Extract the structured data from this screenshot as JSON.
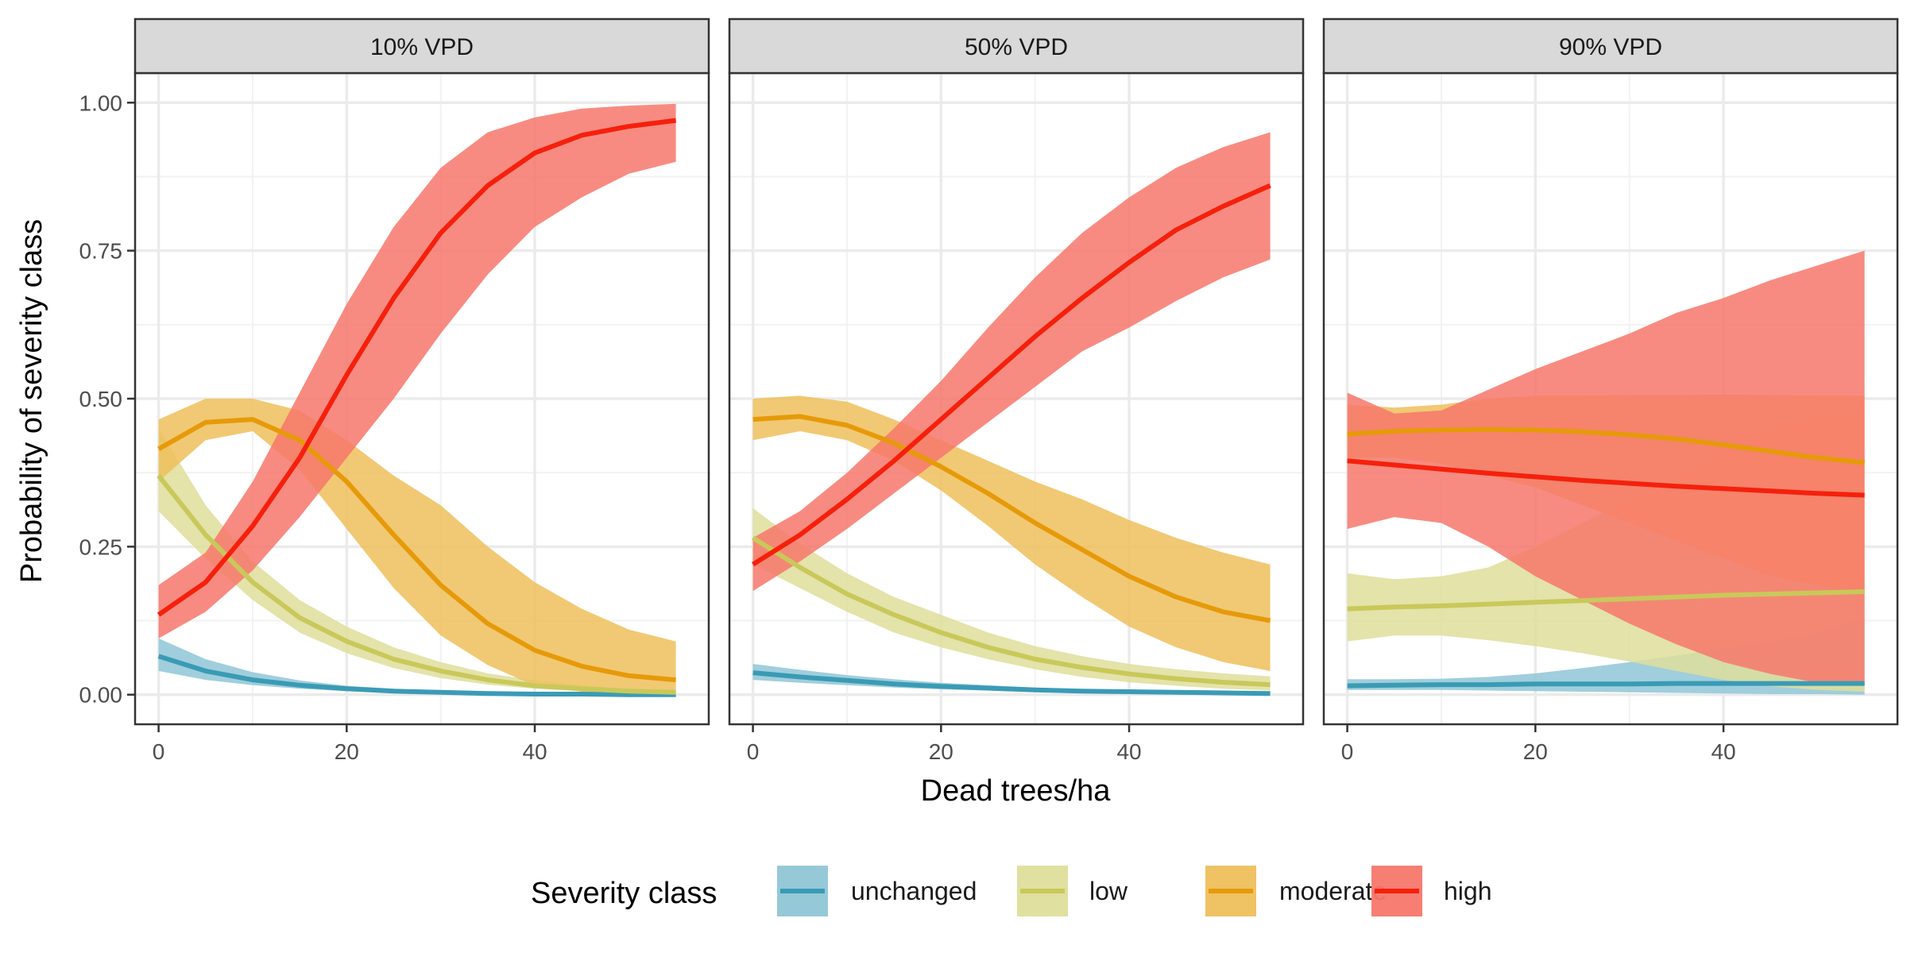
{
  "chart_data": {
    "type": "area",
    "xlabel": "Dead trees/ha",
    "ylabel": "Probability of severity class",
    "xlim": [
      -2.5,
      58.5
    ],
    "ylim": [
      -0.05,
      1.05
    ],
    "xticks": [
      0,
      20,
      40
    ],
    "yticks": [
      0,
      0.25,
      0.5,
      0.75,
      1.0
    ],
    "ytick_labels": [
      "0.00",
      "0.25",
      "0.50",
      "0.75",
      "1.00"
    ],
    "grid": true,
    "legend": {
      "title": "Severity class",
      "position": "bottom",
      "entries": [
        "unchanged",
        "low",
        "moderate",
        "high"
      ]
    },
    "colors": {
      "unchanged": {
        "line": "#3a9bb5",
        "fill": "#8fc6d6"
      },
      "low": {
        "line": "#c9c85a",
        "fill": "#dede9b"
      },
      "moderate": {
        "line": "#e69a0a",
        "fill": "#eebf5c"
      },
      "high": {
        "line": "#f5200c",
        "fill": "#f7776b"
      }
    },
    "x": [
      0,
      5,
      10,
      15,
      20,
      25,
      30,
      35,
      40,
      45,
      50,
      55
    ],
    "panels": [
      {
        "strip": "10% VPD",
        "series": [
          {
            "name": "unchanged",
            "mean": [
              0.065,
              0.04,
              0.025,
              0.016,
              0.01,
              0.006,
              0.004,
              0.002,
              0.001,
              0.001,
              0.0,
              0.0
            ],
            "lower": [
              0.04,
              0.025,
              0.016,
              0.01,
              0.006,
              0.003,
              0.002,
              0.001,
              0.0,
              0.0,
              0.0,
              0.0
            ],
            "upper": [
              0.095,
              0.06,
              0.038,
              0.024,
              0.015,
              0.01,
              0.006,
              0.004,
              0.002,
              0.001,
              0.001,
              0.0
            ]
          },
          {
            "name": "low",
            "mean": [
              0.37,
              0.27,
              0.19,
              0.13,
              0.09,
              0.06,
              0.04,
              0.025,
              0.015,
              0.01,
              0.006,
              0.004
            ],
            "lower": [
              0.31,
              0.23,
              0.16,
              0.105,
              0.07,
              0.045,
              0.028,
              0.017,
              0.01,
              0.006,
              0.003,
              0.002
            ],
            "upper": [
              0.45,
              0.32,
              0.225,
              0.16,
              0.115,
              0.08,
              0.055,
              0.036,
              0.024,
              0.016,
              0.01,
              0.007
            ]
          },
          {
            "name": "moderate",
            "mean": [
              0.415,
              0.46,
              0.465,
              0.43,
              0.36,
              0.27,
              0.185,
              0.12,
              0.075,
              0.048,
              0.032,
              0.025
            ],
            "lower": [
              0.36,
              0.43,
              0.445,
              0.38,
              0.28,
              0.18,
              0.1,
              0.05,
              0.015,
              0.005,
              0.002,
              0.0
            ],
            "upper": [
              0.465,
              0.5,
              0.5,
              0.48,
              0.43,
              0.37,
              0.32,
              0.25,
              0.19,
              0.145,
              0.11,
              0.09
            ]
          },
          {
            "name": "high",
            "mean": [
              0.135,
              0.19,
              0.285,
              0.4,
              0.54,
              0.67,
              0.78,
              0.86,
              0.915,
              0.945,
              0.96,
              0.97
            ],
            "lower": [
              0.095,
              0.14,
              0.21,
              0.3,
              0.4,
              0.5,
              0.61,
              0.71,
              0.79,
              0.84,
              0.88,
              0.9
            ],
            "upper": [
              0.185,
              0.24,
              0.36,
              0.51,
              0.66,
              0.79,
              0.89,
              0.95,
              0.975,
              0.99,
              0.995,
              0.998
            ]
          }
        ]
      },
      {
        "strip": "50% VPD",
        "series": [
          {
            "name": "unchanged",
            "mean": [
              0.037,
              0.03,
              0.024,
              0.018,
              0.014,
              0.011,
              0.008,
              0.006,
              0.005,
              0.004,
              0.003,
              0.002
            ],
            "lower": [
              0.025,
              0.02,
              0.016,
              0.012,
              0.009,
              0.007,
              0.005,
              0.004,
              0.003,
              0.002,
              0.001,
              0.001
            ],
            "upper": [
              0.052,
              0.042,
              0.033,
              0.026,
              0.02,
              0.016,
              0.012,
              0.009,
              0.007,
              0.006,
              0.004,
              0.003
            ]
          },
          {
            "name": "low",
            "mean": [
              0.265,
              0.215,
              0.17,
              0.135,
              0.105,
              0.08,
              0.06,
              0.046,
              0.035,
              0.027,
              0.021,
              0.017
            ],
            "lower": [
              0.22,
              0.18,
              0.14,
              0.105,
              0.08,
              0.06,
              0.043,
              0.03,
              0.021,
              0.015,
              0.01,
              0.007
            ],
            "upper": [
              0.315,
              0.255,
              0.205,
              0.165,
              0.135,
              0.105,
              0.082,
              0.065,
              0.052,
              0.043,
              0.036,
              0.031
            ]
          },
          {
            "name": "moderate",
            "mean": [
              0.465,
              0.47,
              0.455,
              0.425,
              0.385,
              0.34,
              0.29,
              0.245,
              0.2,
              0.165,
              0.14,
              0.125
            ],
            "lower": [
              0.43,
              0.445,
              0.43,
              0.395,
              0.345,
              0.285,
              0.22,
              0.165,
              0.115,
              0.08,
              0.055,
              0.04
            ],
            "upper": [
              0.5,
              0.505,
              0.495,
              0.465,
              0.43,
              0.395,
              0.36,
              0.33,
              0.295,
              0.265,
              0.24,
              0.22
            ]
          },
          {
            "name": "high",
            "mean": [
              0.22,
              0.27,
              0.33,
              0.395,
              0.465,
              0.535,
              0.605,
              0.67,
              0.73,
              0.785,
              0.825,
              0.86
            ],
            "lower": [
              0.175,
              0.225,
              0.28,
              0.34,
              0.4,
              0.46,
              0.52,
              0.58,
              0.62,
              0.665,
              0.705,
              0.735
            ],
            "upper": [
              0.265,
              0.31,
              0.375,
              0.45,
              0.53,
              0.62,
              0.705,
              0.78,
              0.84,
              0.89,
              0.925,
              0.95
            ]
          }
        ]
      },
      {
        "strip": "90% VPD",
        "series": [
          {
            "name": "unchanged",
            "mean": [
              0.015,
              0.016,
              0.017,
              0.017,
              0.018,
              0.018,
              0.018,
              0.019,
              0.019,
              0.019,
              0.019,
              0.019
            ],
            "lower": [
              0.008,
              0.008,
              0.008,
              0.007,
              0.006,
              0.005,
              0.004,
              0.003,
              0.002,
              0.001,
              0.001,
              0.0
            ],
            "upper": [
              0.026,
              0.026,
              0.027,
              0.03,
              0.036,
              0.045,
              0.055,
              0.066,
              0.078,
              0.09,
              0.105,
              0.13
            ]
          },
          {
            "name": "low",
            "mean": [
              0.145,
              0.148,
              0.15,
              0.153,
              0.156,
              0.159,
              0.162,
              0.165,
              0.168,
              0.17,
              0.172,
              0.174
            ],
            "lower": [
              0.09,
              0.1,
              0.1,
              0.092,
              0.082,
              0.07,
              0.056,
              0.04,
              0.025,
              0.014,
              0.008,
              0.005
            ],
            "upper": [
              0.205,
              0.195,
              0.2,
              0.215,
              0.25,
              0.29,
              0.33,
              0.37,
              0.41,
              0.45,
              0.47,
              0.48
            ]
          },
          {
            "name": "moderate",
            "mean": [
              0.44,
              0.445,
              0.447,
              0.448,
              0.447,
              0.444,
              0.439,
              0.432,
              0.422,
              0.411,
              0.4,
              0.392
            ],
            "lower": [
              0.4,
              0.4,
              0.39,
              0.37,
              0.35,
              0.32,
              0.29,
              0.26,
              0.23,
              0.2,
              0.185,
              0.17
            ],
            "upper": [
              0.49,
              0.485,
              0.49,
              0.5,
              0.505,
              0.505,
              0.506,
              0.506,
              0.507,
              0.506,
              0.505,
              0.505
            ]
          },
          {
            "name": "high",
            "mean": [
              0.395,
              0.388,
              0.381,
              0.374,
              0.368,
              0.362,
              0.357,
              0.352,
              0.348,
              0.344,
              0.34,
              0.337
            ],
            "lower": [
              0.28,
              0.3,
              0.29,
              0.25,
              0.2,
              0.16,
              0.12,
              0.085,
              0.055,
              0.035,
              0.02,
              0.015
            ],
            "upper": [
              0.51,
              0.475,
              0.48,
              0.515,
              0.55,
              0.58,
              0.61,
              0.645,
              0.67,
              0.7,
              0.725,
              0.75
            ]
          }
        ]
      }
    ]
  }
}
